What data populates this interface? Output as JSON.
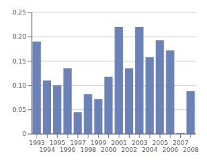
{
  "chart_data": {
    "type": "bar",
    "categories": [
      "1993",
      "1994",
      "1995",
      "1996",
      "1997",
      "1998",
      "1999",
      "2000",
      "2001",
      "2002",
      "2003",
      "2004",
      "2005",
      "2006",
      "2007",
      "2008"
    ],
    "values": [
      0.19,
      0.11,
      0.1,
      0.135,
      0.045,
      0.082,
      0.072,
      0.118,
      0.22,
      0.135,
      0.22,
      0.158,
      0.193,
      0.172,
      0.002,
      0.088
    ],
    "color": "#6b82b8",
    "ylim": [
      0,
      0.25
    ],
    "yticks": [
      0,
      0.05,
      {
        "value": 0.1,
        "label": "0.10"
      },
      0.15,
      {
        "value": 0.2,
        "label": "0.20"
      },
      0.25
    ],
    "grid": true
  }
}
